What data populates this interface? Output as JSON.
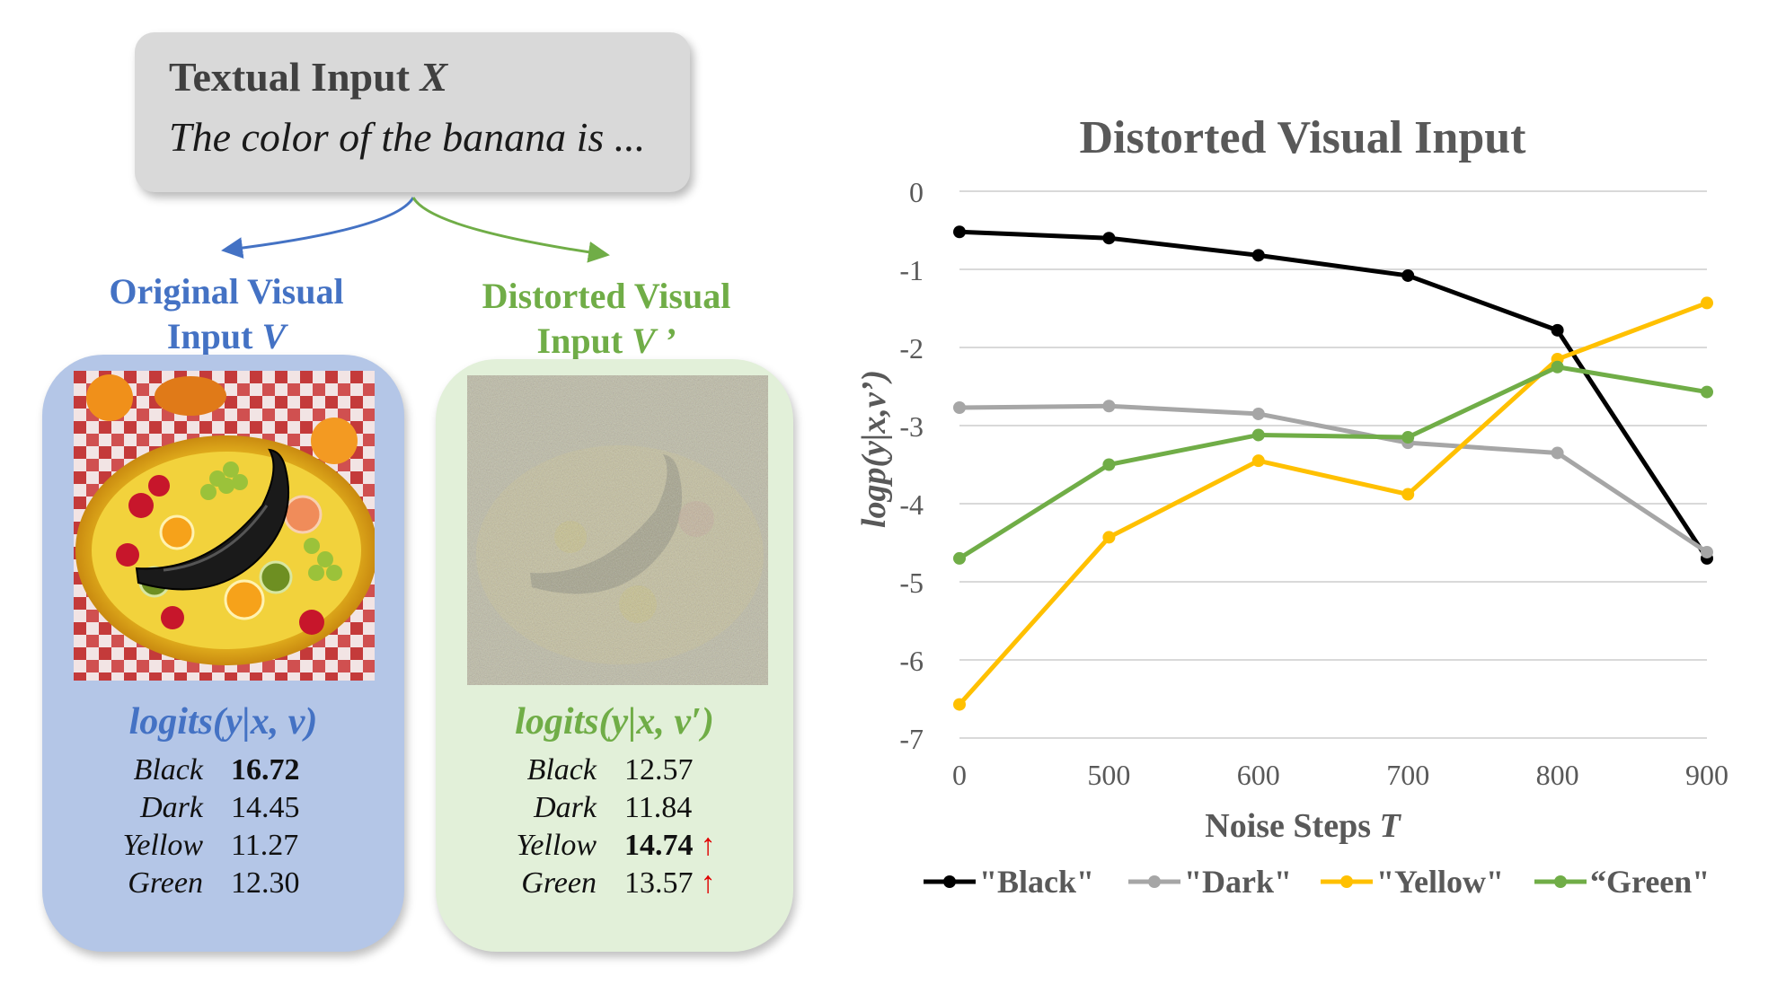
{
  "textual_input": {
    "title": "Textual Input ",
    "title_var": "X",
    "prompt": "The color of the banana is ..."
  },
  "original_panel": {
    "heading_line1": "Original Visual",
    "heading_line2_text": "Input ",
    "heading_line2_var": "V",
    "logits_title": "logits(y|x, v)",
    "rows": [
      {
        "label": "Black",
        "value": "16.72",
        "bold": true,
        "up": false
      },
      {
        "label": "Dark",
        "value": "14.45",
        "bold": false,
        "up": false
      },
      {
        "label": "Yellow",
        "value": "11.27",
        "bold": false,
        "up": false
      },
      {
        "label": "Green",
        "value": "12.30",
        "bold": false,
        "up": false
      }
    ]
  },
  "distorted_panel": {
    "heading_line1": "Distorted Visual",
    "heading_line2_text": "Input ",
    "heading_line2_var": "V ’",
    "logits_title": "logits(y|x, v′)",
    "up_arrow": "↑",
    "rows": [
      {
        "label": "Black",
        "value": "12.57",
        "bold": false,
        "up": false
      },
      {
        "label": "Dark",
        "value": "11.84",
        "bold": false,
        "up": false
      },
      {
        "label": "Yellow",
        "value": "14.74",
        "bold": true,
        "up": true
      },
      {
        "label": "Green",
        "value": "13.57",
        "bold": false,
        "up": true
      }
    ]
  },
  "colors": {
    "blue": "#4472c4",
    "green": "#70ad47",
    "panel_blue": "#b4c6e7",
    "panel_green": "#e2f0d9",
    "arrow_red": "#e00000"
  },
  "chart_data": {
    "type": "line",
    "title": "Distorted Visual Input",
    "xlabel": "Noise Steps ",
    "xlabel_var": "T",
    "ylabel": "logp(y|x,v’)",
    "categories": [
      "0",
      "500",
      "600",
      "700",
      "800",
      "900"
    ],
    "ylim": [
      -7,
      0
    ],
    "yticks": [
      "0",
      "-1",
      "-2",
      "-3",
      "-4",
      "-5",
      "-6",
      "-7"
    ],
    "grid": true,
    "legend_position": "bottom",
    "series": [
      {
        "name": "\"Black\"",
        "color": "#000000",
        "values": [
          -0.52,
          -0.6,
          -0.82,
          -1.08,
          -1.78,
          -4.7
        ]
      },
      {
        "name": "\"Dark\"",
        "color": "#a6a6a6",
        "values": [
          -2.77,
          -2.75,
          -2.85,
          -3.22,
          -3.35,
          -4.62
        ]
      },
      {
        "name": "\"Yellow\"",
        "color": "#ffc000",
        "values": [
          -6.57,
          -4.43,
          -3.45,
          -3.88,
          -2.15,
          -1.43
        ]
      },
      {
        "name": "“Green\"",
        "color": "#70ad47",
        "values": [
          -4.7,
          -3.5,
          -3.12,
          -3.15,
          -2.25,
          -2.57
        ]
      }
    ]
  }
}
